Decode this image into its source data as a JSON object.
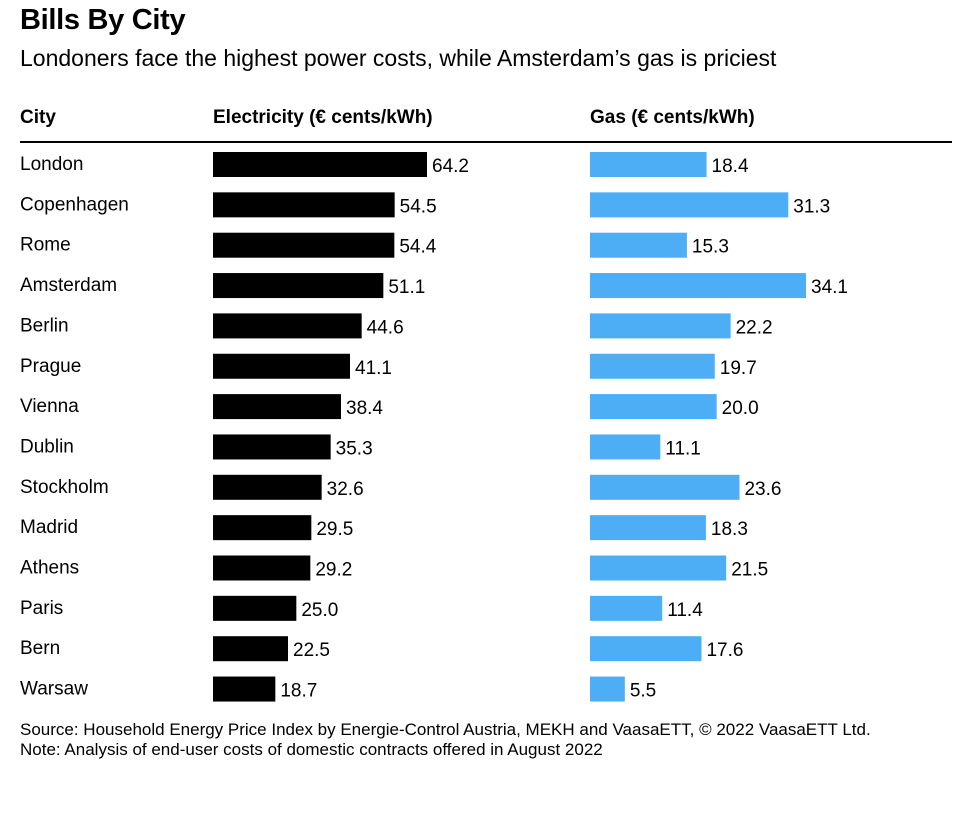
{
  "title": "Bills By City",
  "subtitle": "Londoners face the highest power costs, while Amsterdam’s gas is priciest",
  "columns": {
    "city": "City",
    "electricity": "Electricity (€ cents/kWh)",
    "gas": "Gas (€ cents/kWh)"
  },
  "colors": {
    "electricity": "#000000",
    "gas": "#4daef5"
  },
  "chart_data": {
    "type": "bar",
    "orientation": "horizontal",
    "categories": [
      "London",
      "Copenhagen",
      "Rome",
      "Amsterdam",
      "Berlin",
      "Prague",
      "Vienna",
      "Dublin",
      "Stockholm",
      "Madrid",
      "Athens",
      "Paris",
      "Bern",
      "Warsaw"
    ],
    "series": [
      {
        "name": "Electricity (€ cents/kWh)",
        "values": [
          64.2,
          54.5,
          54.4,
          51.1,
          44.6,
          41.1,
          38.4,
          35.3,
          32.6,
          29.5,
          29.2,
          25.0,
          22.5,
          18.7
        ]
      },
      {
        "name": "Gas (€ cents/kWh)",
        "values": [
          18.4,
          31.3,
          15.3,
          34.1,
          22.2,
          19.7,
          20.0,
          11.1,
          23.6,
          18.3,
          21.5,
          11.4,
          17.6,
          5.5
        ]
      }
    ],
    "labels": {
      "electricity": [
        "64.2",
        "54.5",
        "54.4",
        "51.1",
        "44.6",
        "41.1",
        "38.4",
        "35.3",
        "32.6",
        "29.5",
        "29.2",
        "25.0",
        "22.5",
        "18.7"
      ],
      "gas": [
        "18.4",
        "31.3",
        "15.3",
        "34.1",
        "22.2",
        "19.7",
        "20.0",
        "11.1",
        "23.6",
        "18.3",
        "21.5",
        "11.4",
        "17.6",
        "5.5"
      ]
    },
    "title": "Bills By City",
    "xlabel": "",
    "ylabel": "City"
  },
  "footer": {
    "source": "Source: Household Energy Price Index by Energie-Control Austria, MEKH and VaasaETT, © 2022 VaasaETT Ltd.",
    "note": "Note: Analysis of end-user costs of domestic contracts offered in August 2022"
  }
}
